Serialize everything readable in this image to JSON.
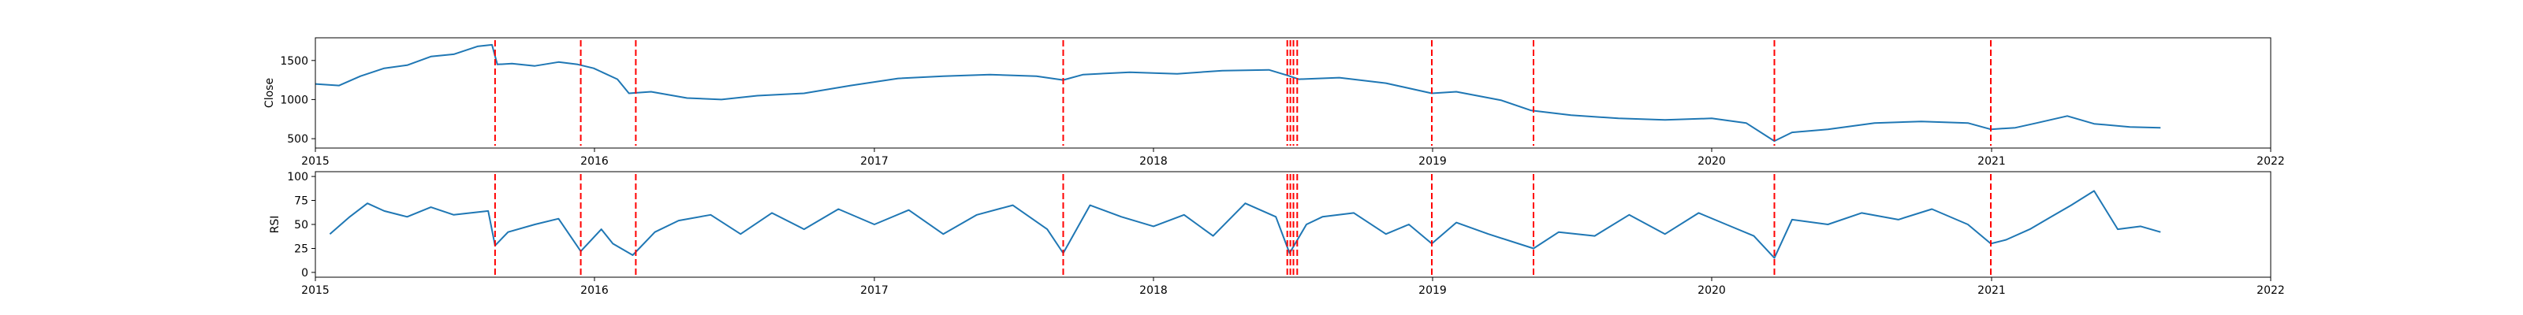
{
  "chart_data": [
    {
      "type": "line",
      "panel": "top",
      "title": "",
      "xlabel": "",
      "ylabel": "Close",
      "xlim": [
        "2015-01-01",
        "2022-01-01"
      ],
      "ylim": [
        380,
        1790
      ],
      "x_ticks": [
        "2015-01-01",
        "2016-01-01",
        "2017-01-01",
        "2018-01-01",
        "2019-01-01",
        "2020-01-01",
        "2021-01-01",
        "2022-01-01"
      ],
      "x_tick_labels": [
        "2015",
        "2016",
        "2017",
        "2018",
        "2019",
        "2020",
        "2021",
        "2022"
      ],
      "y_ticks": [
        500,
        1000,
        1500
      ],
      "y_tick_labels": [
        "500",
        "1000",
        "1500"
      ],
      "grid": false,
      "legend": "none",
      "line_color": "#1f77b4",
      "marker_color": "#ff0000",
      "series": [
        {
          "x": [
            "2015-01-01",
            "2015-02-01",
            "2015-03-01",
            "2015-04-01",
            "2015-05-01",
            "2015-06-01",
            "2015-07-01",
            "2015-08-01",
            "2015-08-20",
            "2015-08-27",
            "2015-09-15",
            "2015-10-15",
            "2015-11-15",
            "2015-12-10",
            "2015-12-31",
            "2016-01-31",
            "2016-02-15",
            "2016-03-15",
            "2016-05-01",
            "2016-06-15",
            "2016-08-01",
            "2016-10-01",
            "2016-12-01",
            "2017-02-01",
            "2017-04-01",
            "2017-06-01",
            "2017-08-01",
            "2017-09-05",
            "2017-10-01",
            "2017-12-01",
            "2018-02-01",
            "2018-04-01",
            "2018-06-01",
            "2018-06-25",
            "2018-07-10",
            "2018-09-01",
            "2018-11-01",
            "2018-12-31",
            "2019-02-01",
            "2019-04-01",
            "2019-05-10",
            "2019-07-01",
            "2019-09-01",
            "2019-11-01",
            "2020-01-01",
            "2020-02-15",
            "2020-03-23",
            "2020-04-15",
            "2020-06-01",
            "2020-08-01",
            "2020-10-01",
            "2020-12-01",
            "2020-12-31",
            "2021-02-01",
            "2021-03-01",
            "2021-04-10",
            "2021-05-15",
            "2021-07-01",
            "2021-08-10"
          ],
          "values": [
            1200,
            1180,
            1300,
            1400,
            1440,
            1550,
            1580,
            1680,
            1700,
            1450,
            1460,
            1430,
            1480,
            1450,
            1400,
            1260,
            1080,
            1100,
            1020,
            1000,
            1050,
            1080,
            1180,
            1270,
            1300,
            1320,
            1300,
            1250,
            1320,
            1350,
            1330,
            1370,
            1380,
            1310,
            1260,
            1280,
            1210,
            1080,
            1100,
            990,
            860,
            800,
            760,
            740,
            760,
            700,
            470,
            580,
            620,
            700,
            720,
            700,
            620,
            640,
            700,
            790,
            690,
            650,
            640
          ]
        }
      ],
      "vertical_markers": [
        "2015-08-24",
        "2015-12-14",
        "2016-02-24",
        "2017-09-05",
        "2018-06-25",
        "2018-06-29",
        "2018-07-03",
        "2018-07-08",
        "2018-12-31",
        "2019-05-13",
        "2020-03-23",
        "2020-12-31"
      ]
    },
    {
      "type": "line",
      "panel": "bottom",
      "title": "",
      "xlabel": "",
      "ylabel": "RSI",
      "xlim": [
        "2015-01-01",
        "2022-01-01"
      ],
      "ylim": [
        -5,
        105
      ],
      "x_ticks": [
        "2015-01-01",
        "2016-01-01",
        "2017-01-01",
        "2018-01-01",
        "2019-01-01",
        "2020-01-01",
        "2021-01-01",
        "2022-01-01"
      ],
      "x_tick_labels": [
        "2015",
        "2016",
        "2017",
        "2018",
        "2019",
        "2020",
        "2021",
        "2022"
      ],
      "y_ticks": [
        0,
        25,
        50,
        75,
        100
      ],
      "y_tick_labels": [
        "0",
        "25",
        "50",
        "75",
        "100"
      ],
      "grid": false,
      "legend": "none",
      "line_color": "#1f77b4",
      "marker_color": "#ff0000",
      "series": [
        {
          "x": [
            "2015-01-20",
            "2015-02-15",
            "2015-03-10",
            "2015-04-01",
            "2015-05-01",
            "2015-06-01",
            "2015-07-01",
            "2015-08-15",
            "2015-08-24",
            "2015-09-10",
            "2015-10-15",
            "2015-11-15",
            "2015-12-14",
            "2016-01-10",
            "2016-01-25",
            "2016-02-20",
            "2016-03-20",
            "2016-04-20",
            "2016-06-01",
            "2016-07-10",
            "2016-08-20",
            "2016-10-01",
            "2016-11-15",
            "2017-01-01",
            "2017-02-15",
            "2017-04-01",
            "2017-05-15",
            "2017-07-01",
            "2017-08-15",
            "2017-09-05",
            "2017-10-10",
            "2017-11-20",
            "2018-01-01",
            "2018-02-10",
            "2018-03-20",
            "2018-05-01",
            "2018-06-10",
            "2018-06-28",
            "2018-07-20",
            "2018-08-10",
            "2018-09-20",
            "2018-11-01",
            "2018-12-01",
            "2018-12-31",
            "2019-02-01",
            "2019-03-15",
            "2019-05-13",
            "2019-06-15",
            "2019-08-01",
            "2019-09-15",
            "2019-11-01",
            "2019-12-15",
            "2020-01-20",
            "2020-02-25",
            "2020-03-23",
            "2020-04-15",
            "2020-06-01",
            "2020-07-15",
            "2020-09-01",
            "2020-10-15",
            "2020-12-01",
            "2020-12-31",
            "2021-01-20",
            "2021-02-20",
            "2021-03-20",
            "2021-04-15",
            "2021-05-15",
            "2021-06-15",
            "2021-07-15",
            "2021-08-10"
          ],
          "values": [
            40,
            58,
            72,
            64,
            58,
            68,
            60,
            64,
            28,
            42,
            50,
            56,
            22,
            45,
            30,
            18,
            42,
            54,
            60,
            40,
            62,
            45,
            66,
            50,
            65,
            40,
            60,
            70,
            45,
            20,
            70,
            58,
            48,
            60,
            38,
            72,
            58,
            20,
            50,
            58,
            62,
            40,
            50,
            30,
            52,
            40,
            25,
            42,
            38,
            60,
            40,
            62,
            50,
            38,
            15,
            55,
            50,
            62,
            55,
            66,
            50,
            30,
            34,
            45,
            58,
            70,
            85,
            45,
            48,
            42
          ]
        }
      ],
      "vertical_markers": [
        "2015-08-24",
        "2015-12-14",
        "2016-02-24",
        "2017-09-05",
        "2018-06-25",
        "2018-06-29",
        "2018-07-03",
        "2018-07-08",
        "2018-12-31",
        "2019-05-13",
        "2020-03-23",
        "2020-12-31"
      ]
    }
  ]
}
